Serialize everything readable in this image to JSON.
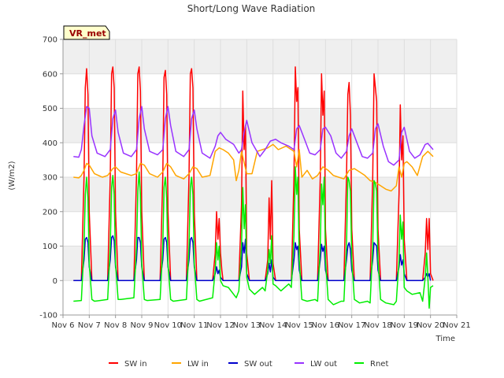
{
  "chart_data": {
    "type": "line",
    "title": "Short/Long Wave Radiation",
    "xlabel": "Time",
    "ylabel": "(W/m2)",
    "badge": "VR_met",
    "xlim": [
      6,
      21
    ],
    "ylim": [
      -100,
      700
    ],
    "x_ticks": [
      6,
      7,
      8,
      9,
      10,
      11,
      12,
      13,
      14,
      15,
      16,
      17,
      18,
      19,
      20,
      21
    ],
    "x_tick_labels": [
      "Nov 6",
      "Nov 7",
      "Nov 8",
      "Nov 9",
      "Nov 10",
      "Nov 11",
      "Nov 12",
      "Nov 13",
      "Nov 14",
      "Nov 15",
      "Nov 16",
      "Nov 17",
      "Nov 18",
      "Nov 19",
      "Nov 20",
      "Nov 21"
    ],
    "y_ticks": [
      -100,
      0,
      100,
      200,
      300,
      400,
      500,
      600,
      700
    ],
    "y_tick_labels": [
      "-100",
      "0",
      "100",
      "200",
      "300",
      "400",
      "500",
      "600",
      "700"
    ],
    "grid": true,
    "legend_position": "bottom",
    "series": [
      {
        "name": "SW in",
        "color": "#ff0000",
        "x": [
          6.4,
          6.7,
          6.8,
          6.85,
          6.9,
          6.95,
          7.0,
          7.1,
          7.2,
          7.7,
          7.8,
          7.85,
          7.9,
          7.95,
          8.0,
          8.1,
          8.2,
          8.7,
          8.8,
          8.85,
          8.9,
          8.95,
          9.0,
          9.1,
          9.2,
          9.7,
          9.8,
          9.85,
          9.9,
          9.95,
          10.0,
          10.1,
          10.2,
          10.7,
          10.8,
          10.85,
          10.9,
          10.95,
          11.0,
          11.1,
          11.2,
          11.7,
          11.8,
          11.85,
          11.9,
          11.95,
          12.0,
          12.05,
          12.1,
          12.2,
          12.7,
          12.8,
          12.85,
          12.9,
          12.95,
          13.0,
          13.1,
          13.2,
          13.7,
          13.8,
          13.85,
          13.9,
          13.95,
          14.0,
          14.1,
          14.2,
          14.7,
          14.8,
          14.85,
          14.9,
          14.95,
          15.0,
          15.1,
          15.2,
          15.7,
          15.8,
          15.85,
          15.9,
          15.95,
          16.0,
          16.1,
          16.2,
          16.7,
          16.8,
          16.85,
          16.9,
          16.95,
          17.0,
          17.1,
          17.2,
          17.7,
          17.8,
          17.85,
          17.9,
          17.95,
          18.0,
          18.1,
          18.2,
          18.7,
          18.8,
          18.85,
          18.9,
          18.95,
          19.0,
          19.1,
          19.2,
          19.7,
          19.8,
          19.85,
          19.9,
          19.95,
          20.0,
          20.1
        ],
        "y": [
          0,
          0,
          300,
          560,
          615,
          540,
          200,
          0,
          0,
          0,
          300,
          600,
          620,
          560,
          200,
          0,
          0,
          0,
          300,
          600,
          620,
          550,
          200,
          0,
          0,
          0,
          300,
          590,
          610,
          540,
          200,
          0,
          0,
          0,
          300,
          600,
          615,
          560,
          200,
          0,
          0,
          0,
          80,
          200,
          120,
          180,
          80,
          30,
          0,
          0,
          0,
          220,
          550,
          380,
          450,
          80,
          0,
          0,
          0,
          60,
          240,
          120,
          290,
          50,
          0,
          0,
          0,
          300,
          620,
          520,
          560,
          150,
          0,
          0,
          0,
          300,
          600,
          480,
          550,
          150,
          0,
          0,
          0,
          300,
          540,
          575,
          480,
          150,
          0,
          0,
          0,
          300,
          600,
          560,
          520,
          150,
          0,
          0,
          0,
          250,
          510,
          350,
          420,
          120,
          0,
          0,
          0,
          80,
          180,
          90,
          180,
          20,
          0
        ]
      },
      {
        "name": "LW in",
        "color": "#ffa500",
        "x": [
          6.4,
          6.6,
          6.7,
          6.8,
          6.9,
          7.0,
          7.2,
          7.5,
          7.7,
          7.9,
          8.0,
          8.2,
          8.6,
          8.8,
          8.95,
          9.1,
          9.3,
          9.6,
          9.8,
          9.95,
          10.1,
          10.3,
          10.6,
          10.8,
          10.95,
          11.1,
          11.3,
          11.6,
          11.8,
          11.95,
          12.1,
          12.3,
          12.5,
          12.6,
          12.7,
          12.8,
          13.0,
          13.2,
          13.4,
          13.6,
          13.8,
          14.0,
          14.2,
          14.5,
          14.7,
          14.8,
          14.9,
          15.0,
          15.1,
          15.3,
          15.5,
          15.7,
          15.9,
          16.1,
          16.3,
          16.5,
          16.7,
          16.9,
          17.1,
          17.3,
          17.5,
          17.7,
          17.9,
          18.1,
          18.3,
          18.5,
          18.7,
          18.8,
          18.9,
          19.0,
          19.1,
          19.3,
          19.5,
          19.7,
          19.9,
          20.1
        ],
        "y": [
          300,
          298,
          305,
          320,
          340,
          335,
          310,
          300,
          305,
          325,
          330,
          315,
          305,
          310,
          340,
          335,
          310,
          300,
          315,
          340,
          330,
          305,
          295,
          310,
          330,
          325,
          300,
          305,
          375,
          385,
          380,
          370,
          350,
          290,
          320,
          375,
          310,
          310,
          375,
          380,
          385,
          395,
          380,
          390,
          380,
          375,
          330,
          380,
          300,
          320,
          295,
          305,
          330,
          320,
          305,
          300,
          295,
          320,
          325,
          315,
          305,
          290,
          285,
          275,
          265,
          260,
          275,
          330,
          300,
          340,
          345,
          330,
          305,
          360,
          375,
          360
        ]
      },
      {
        "name": "SW out",
        "color": "#0000cc",
        "x": [
          6.4,
          6.7,
          6.8,
          6.85,
          6.9,
          6.95,
          7.0,
          7.1,
          7.2,
          7.7,
          7.8,
          7.85,
          7.9,
          7.95,
          8.0,
          8.1,
          8.2,
          8.7,
          8.8,
          8.85,
          8.9,
          8.95,
          9.0,
          9.1,
          9.2,
          9.7,
          9.8,
          9.85,
          9.9,
          9.95,
          10.0,
          10.1,
          10.2,
          10.7,
          10.8,
          10.85,
          10.9,
          10.95,
          11.0,
          11.1,
          11.2,
          11.7,
          11.8,
          11.85,
          11.9,
          11.95,
          12.0,
          12.1,
          12.2,
          12.7,
          12.8,
          12.85,
          12.9,
          12.95,
          13.0,
          13.1,
          13.2,
          13.7,
          13.8,
          13.85,
          13.9,
          13.95,
          14.0,
          14.1,
          14.2,
          14.7,
          14.8,
          14.85,
          14.9,
          14.95,
          15.0,
          15.1,
          15.2,
          15.7,
          15.8,
          15.85,
          15.9,
          15.95,
          16.0,
          16.1,
          16.2,
          16.7,
          16.8,
          16.85,
          16.9,
          16.95,
          17.0,
          17.1,
          17.2,
          17.7,
          17.8,
          17.85,
          17.9,
          17.95,
          18.0,
          18.1,
          18.2,
          18.7,
          18.8,
          18.85,
          18.9,
          18.95,
          19.0,
          19.1,
          19.2,
          19.7,
          19.8,
          19.85,
          19.9,
          19.95,
          20.0
        ],
        "y": [
          0,
          0,
          60,
          120,
          125,
          110,
          40,
          0,
          0,
          0,
          60,
          125,
          130,
          115,
          40,
          0,
          0,
          0,
          60,
          125,
          125,
          110,
          40,
          0,
          0,
          0,
          60,
          120,
          125,
          110,
          40,
          0,
          0,
          0,
          60,
          120,
          125,
          110,
          40,
          0,
          0,
          0,
          20,
          40,
          20,
          30,
          10,
          0,
          0,
          0,
          40,
          110,
          80,
          120,
          20,
          0,
          0,
          0,
          20,
          50,
          25,
          60,
          10,
          0,
          0,
          0,
          60,
          110,
          90,
          100,
          30,
          0,
          0,
          0,
          60,
          105,
          85,
          100,
          30,
          0,
          0,
          0,
          60,
          100,
          110,
          90,
          30,
          0,
          0,
          0,
          60,
          110,
          105,
          100,
          30,
          0,
          0,
          0,
          40,
          75,
          45,
          60,
          20,
          0,
          0,
          0,
          10,
          20,
          10,
          20,
          0
        ]
      },
      {
        "name": "LW out",
        "color": "#9933ff",
        "x": [
          6.4,
          6.6,
          6.7,
          6.8,
          6.9,
          7.0,
          7.1,
          7.3,
          7.6,
          7.8,
          7.9,
          8.0,
          8.1,
          8.3,
          8.6,
          8.8,
          8.9,
          9.0,
          9.1,
          9.3,
          9.6,
          9.8,
          9.9,
          10.0,
          10.1,
          10.3,
          10.6,
          10.8,
          10.9,
          11.0,
          11.1,
          11.3,
          11.6,
          11.8,
          11.9,
          12.0,
          12.2,
          12.5,
          12.7,
          12.8,
          12.9,
          13.0,
          13.2,
          13.5,
          13.7,
          13.9,
          14.1,
          14.3,
          14.6,
          14.8,
          14.9,
          15.0,
          15.2,
          15.4,
          15.6,
          15.8,
          15.9,
          16.0,
          16.2,
          16.4,
          16.6,
          16.8,
          16.9,
          17.0,
          17.2,
          17.4,
          17.6,
          17.8,
          17.9,
          18.0,
          18.2,
          18.4,
          18.6,
          18.8,
          18.9,
          19.0,
          19.2,
          19.4,
          19.6,
          19.8,
          19.9,
          20.1
        ],
        "y": [
          360,
          358,
          380,
          450,
          505,
          500,
          420,
          370,
          360,
          380,
          470,
          495,
          430,
          370,
          360,
          380,
          470,
          505,
          440,
          375,
          365,
          380,
          470,
          505,
          450,
          375,
          360,
          380,
          470,
          495,
          440,
          370,
          355,
          390,
          420,
          430,
          410,
          395,
          370,
          380,
          430,
          465,
          400,
          360,
          380,
          405,
          410,
          400,
          390,
          380,
          440,
          450,
          410,
          370,
          365,
          380,
          440,
          445,
          420,
          370,
          355,
          375,
          420,
          440,
          400,
          360,
          355,
          370,
          440,
          455,
          390,
          345,
          335,
          350,
          430,
          445,
          375,
          355,
          365,
          395,
          398,
          380
        ]
      },
      {
        "name": "Rnet",
        "color": "#00ee00",
        "x": [
          6.4,
          6.7,
          6.8,
          6.85,
          6.9,
          6.95,
          7.0,
          7.1,
          7.2,
          7.7,
          7.8,
          7.85,
          7.9,
          7.95,
          8.0,
          8.1,
          8.2,
          8.7,
          8.8,
          8.85,
          8.9,
          8.95,
          9.0,
          9.1,
          9.2,
          9.7,
          9.8,
          9.85,
          9.9,
          9.95,
          10.0,
          10.1,
          10.2,
          10.7,
          10.8,
          10.85,
          10.9,
          10.95,
          11.0,
          11.1,
          11.2,
          11.7,
          11.8,
          11.85,
          11.9,
          11.95,
          12.0,
          12.1,
          12.3,
          12.6,
          12.7,
          12.8,
          12.85,
          12.9,
          12.95,
          13.0,
          13.1,
          13.3,
          13.6,
          13.7,
          13.8,
          13.85,
          13.9,
          13.95,
          14.0,
          14.1,
          14.3,
          14.6,
          14.7,
          14.8,
          14.85,
          14.9,
          14.95,
          15.0,
          15.1,
          15.3,
          15.6,
          15.7,
          15.8,
          15.85,
          15.9,
          15.95,
          16.0,
          16.1,
          16.3,
          16.6,
          16.7,
          16.8,
          16.85,
          16.9,
          16.95,
          17.0,
          17.1,
          17.3,
          17.6,
          17.7,
          17.8,
          17.85,
          17.9,
          17.95,
          18.0,
          18.1,
          18.3,
          18.6,
          18.7,
          18.8,
          18.85,
          18.9,
          18.95,
          19.0,
          19.1,
          19.3,
          19.6,
          19.7,
          19.8,
          19.85,
          19.9,
          19.95,
          20.0,
          20.1
        ],
        "y": [
          -60,
          -58,
          100,
          250,
          300,
          240,
          50,
          -55,
          -60,
          -55,
          100,
          270,
          305,
          250,
          50,
          -55,
          -55,
          -50,
          100,
          260,
          315,
          250,
          50,
          -55,
          -58,
          -55,
          100,
          270,
          300,
          240,
          50,
          -55,
          -60,
          -55,
          100,
          270,
          300,
          250,
          50,
          -55,
          -60,
          -50,
          30,
          110,
          60,
          100,
          0,
          -15,
          -20,
          -50,
          -30,
          100,
          270,
          150,
          220,
          10,
          -25,
          -40,
          -20,
          -30,
          30,
          90,
          50,
          130,
          -10,
          -15,
          -30,
          -10,
          -20,
          130,
          330,
          250,
          300,
          60,
          -55,
          -60,
          -55,
          -60,
          100,
          280,
          220,
          300,
          60,
          -55,
          -70,
          -60,
          -60,
          100,
          300,
          290,
          260,
          60,
          -55,
          -65,
          -60,
          -65,
          100,
          290,
          280,
          260,
          60,
          -55,
          -65,
          -70,
          -60,
          60,
          190,
          120,
          170,
          -20,
          -30,
          -40,
          -35,
          -60,
          10,
          80,
          10,
          -80,
          -20,
          -15
        ]
      }
    ]
  }
}
